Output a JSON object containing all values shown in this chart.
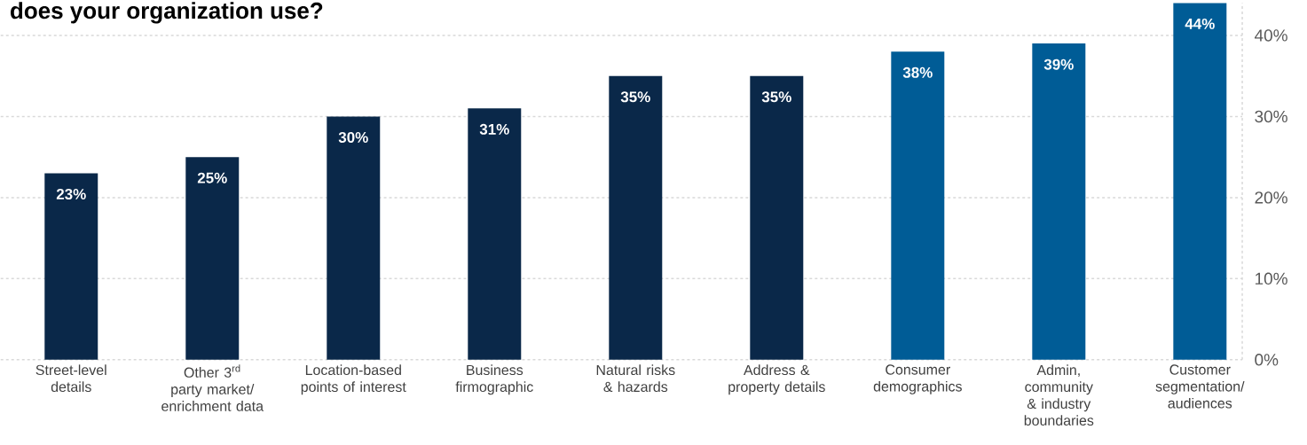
{
  "chart_data": {
    "type": "bar",
    "title": "does your organization use?",
    "categories": [
      "Street-level details",
      "Other 3$^{rd}$ party market/ enrichment data",
      "Location-based points of interest",
      "Business firmographic",
      "Natural risks & hazards",
      "Address & property details",
      "Consumer demographics",
      "Admin, community & industry boundaries",
      "Customer segmentation/ audiences"
    ],
    "values": [
      23,
      25,
      30,
      31,
      35,
      35,
      38,
      39,
      44
    ],
    "value_labels": [
      "23%",
      "25%",
      "30%",
      "31%",
      "35%",
      "35%",
      "38%",
      "39%",
      "44%"
    ],
    "colors": [
      "#0a2849",
      "#0a2849",
      "#0a2849",
      "#0a2849",
      "#0a2849",
      "#0a2849",
      "#005c96",
      "#005c96",
      "#005c96"
    ],
    "ylim": [
      0,
      44
    ],
    "yticks": [
      {
        "value": 0,
        "label": "0%"
      },
      {
        "value": 10,
        "label": "10%"
      },
      {
        "value": 20,
        "label": "20%"
      },
      {
        "value": 30,
        "label": "30%"
      },
      {
        "value": 40,
        "label": "40%"
      }
    ],
    "grid": "y"
  }
}
